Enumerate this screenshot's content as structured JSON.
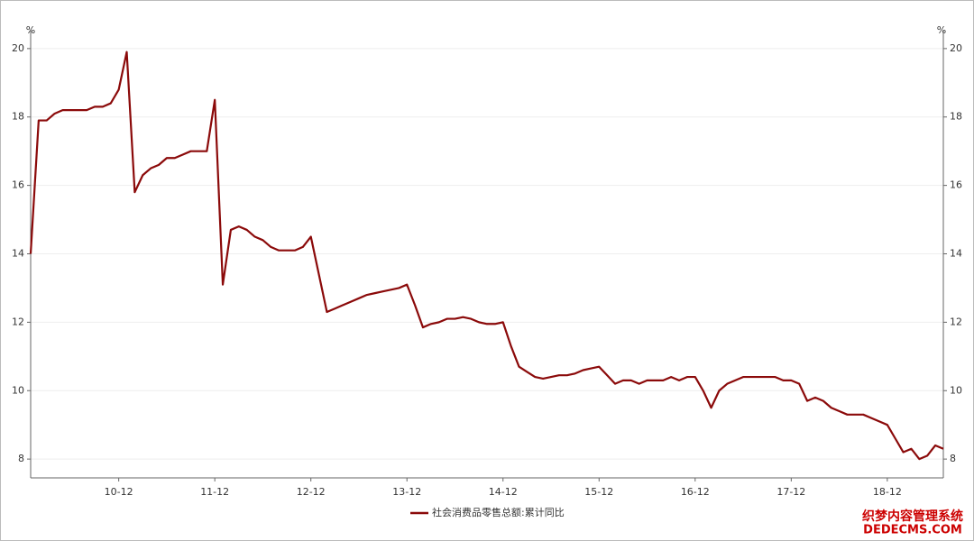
{
  "chart_data": {
    "type": "line",
    "y_unit": "%",
    "categories": [
      null,
      null,
      null,
      null,
      null,
      null,
      null,
      null,
      null,
      null,
      null,
      "10-12",
      null,
      null,
      null,
      null,
      null,
      null,
      null,
      null,
      null,
      null,
      null,
      "11-12",
      null,
      null,
      null,
      null,
      null,
      null,
      null,
      null,
      null,
      null,
      null,
      "12-12",
      null,
      null,
      null,
      null,
      null,
      null,
      null,
      null,
      null,
      null,
      null,
      "13-12",
      null,
      null,
      null,
      null,
      null,
      null,
      null,
      null,
      null,
      null,
      null,
      "14-12",
      null,
      null,
      null,
      null,
      null,
      null,
      null,
      null,
      null,
      null,
      null,
      "15-12",
      null,
      null,
      null,
      null,
      null,
      null,
      null,
      null,
      null,
      null,
      null,
      "16-12",
      null,
      null,
      null,
      null,
      null,
      null,
      null,
      null,
      null,
      null,
      null,
      "17-12",
      null,
      null,
      null,
      null,
      null,
      null,
      null,
      null,
      null,
      null,
      null,
      "18-12",
      null,
      null,
      null,
      null,
      null,
      null,
      null
    ],
    "series": [
      {
        "name": "社会消费品零售总额:累计同比",
        "color": "#8b0a0a",
        "values": [
          14.0,
          17.9,
          17.9,
          18.1,
          18.2,
          18.2,
          18.2,
          18.2,
          18.3,
          18.3,
          18.4,
          18.8,
          19.9,
          15.8,
          16.3,
          16.5,
          16.6,
          16.8,
          16.8,
          16.9,
          17.0,
          17.0,
          17.0,
          18.5,
          13.1,
          14.7,
          14.8,
          14.7,
          14.5,
          14.4,
          14.2,
          14.1,
          14.1,
          14.1,
          14.2,
          14.5,
          13.4,
          12.3,
          12.4,
          12.5,
          12.6,
          12.7,
          12.8,
          12.85,
          12.9,
          12.95,
          13.0,
          13.1,
          12.5,
          11.85,
          11.95,
          12.0,
          12.1,
          12.1,
          12.15,
          12.1,
          12.0,
          11.95,
          11.95,
          12.0,
          11.3,
          10.7,
          10.55,
          10.4,
          10.35,
          10.4,
          10.45,
          10.45,
          10.5,
          10.6,
          10.65,
          10.7,
          10.45,
          10.2,
          10.3,
          10.3,
          10.2,
          10.3,
          10.3,
          10.3,
          10.4,
          10.3,
          10.4,
          10.4,
          10.0,
          9.5,
          10.0,
          10.2,
          10.3,
          10.4,
          10.4,
          10.4,
          10.4,
          10.4,
          10.3,
          10.3,
          10.2,
          9.7,
          9.8,
          9.7,
          9.5,
          9.4,
          9.3,
          9.3,
          9.3,
          9.2,
          9.1,
          9.0,
          8.6,
          8.2,
          8.3,
          8.0,
          8.1,
          8.4,
          8.3
        ]
      }
    ],
    "ylim": [
      7.45,
      20.55
    ],
    "yticks": [
      8,
      10,
      12,
      14,
      16,
      18,
      20
    ],
    "y2lim": [
      7.45,
      20.55
    ],
    "y2ticks": [
      8,
      10,
      12,
      14,
      16,
      18,
      20
    ],
    "grid": true,
    "legend": "bottom",
    "watermark": [
      "织梦内容管理系统",
      "DEDECMS.COM"
    ]
  }
}
